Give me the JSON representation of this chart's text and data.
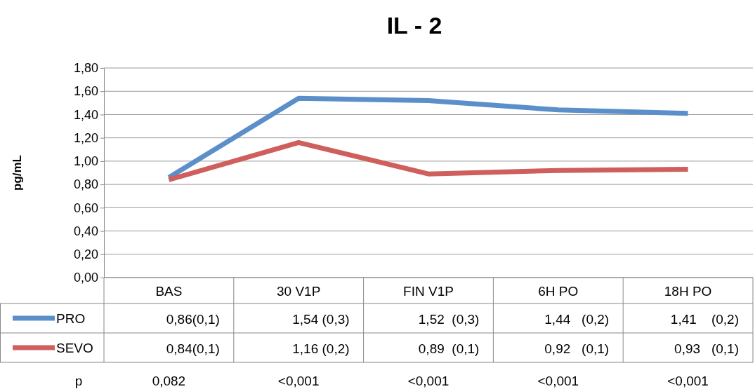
{
  "chart_data": {
    "type": "line",
    "title": "IL - 2",
    "ylabel": "pg/mL",
    "categories": [
      "BAS",
      "30 V1P",
      "FIN V1P",
      "6H PO",
      "18H PO"
    ],
    "series": [
      {
        "name": "PRO",
        "color": "#5b8fc9",
        "values": [
          0.86,
          1.54,
          1.52,
          1.44,
          1.41
        ],
        "value_labels": [
          "0,86(0,1)",
          "1,54 (0,3)",
          "1,52  (0,3)",
          "1,44   (0,2)",
          "1,41    (0,2)"
        ]
      },
      {
        "name": "SEVO",
        "color": "#cf5f5c",
        "values": [
          0.84,
          1.16,
          0.89,
          0.92,
          0.93
        ],
        "value_labels": [
          "0,84(0,1)",
          "1,16 (0,2)",
          "0,89  (0,1)",
          "0,92   (0,1)",
          "0,93   (0,1)"
        ]
      }
    ],
    "ylim": [
      0,
      1.8
    ],
    "yticks": [
      {
        "value": 0,
        "label": "0,00"
      },
      {
        "value": 0.2,
        "label": "0,20"
      },
      {
        "value": 0.4,
        "label": "0,40"
      },
      {
        "value": 0.6,
        "label": "0,60"
      },
      {
        "value": 0.8,
        "label": "0,80"
      },
      {
        "value": 1,
        "label": "1,00"
      },
      {
        "value": 1.2,
        "label": "1,20"
      },
      {
        "value": 1.4,
        "label": "1,40"
      },
      {
        "value": 1.6,
        "label": "1,60"
      },
      {
        "value": 1.8,
        "label": "1,80"
      }
    ],
    "grid": "y",
    "legend": "bottom",
    "marker": "none",
    "line_style": "solid",
    "annotations": [
      "p",
      "0,082",
      "<0,001",
      "<0,001",
      "<0,001",
      "<0,001"
    ]
  }
}
